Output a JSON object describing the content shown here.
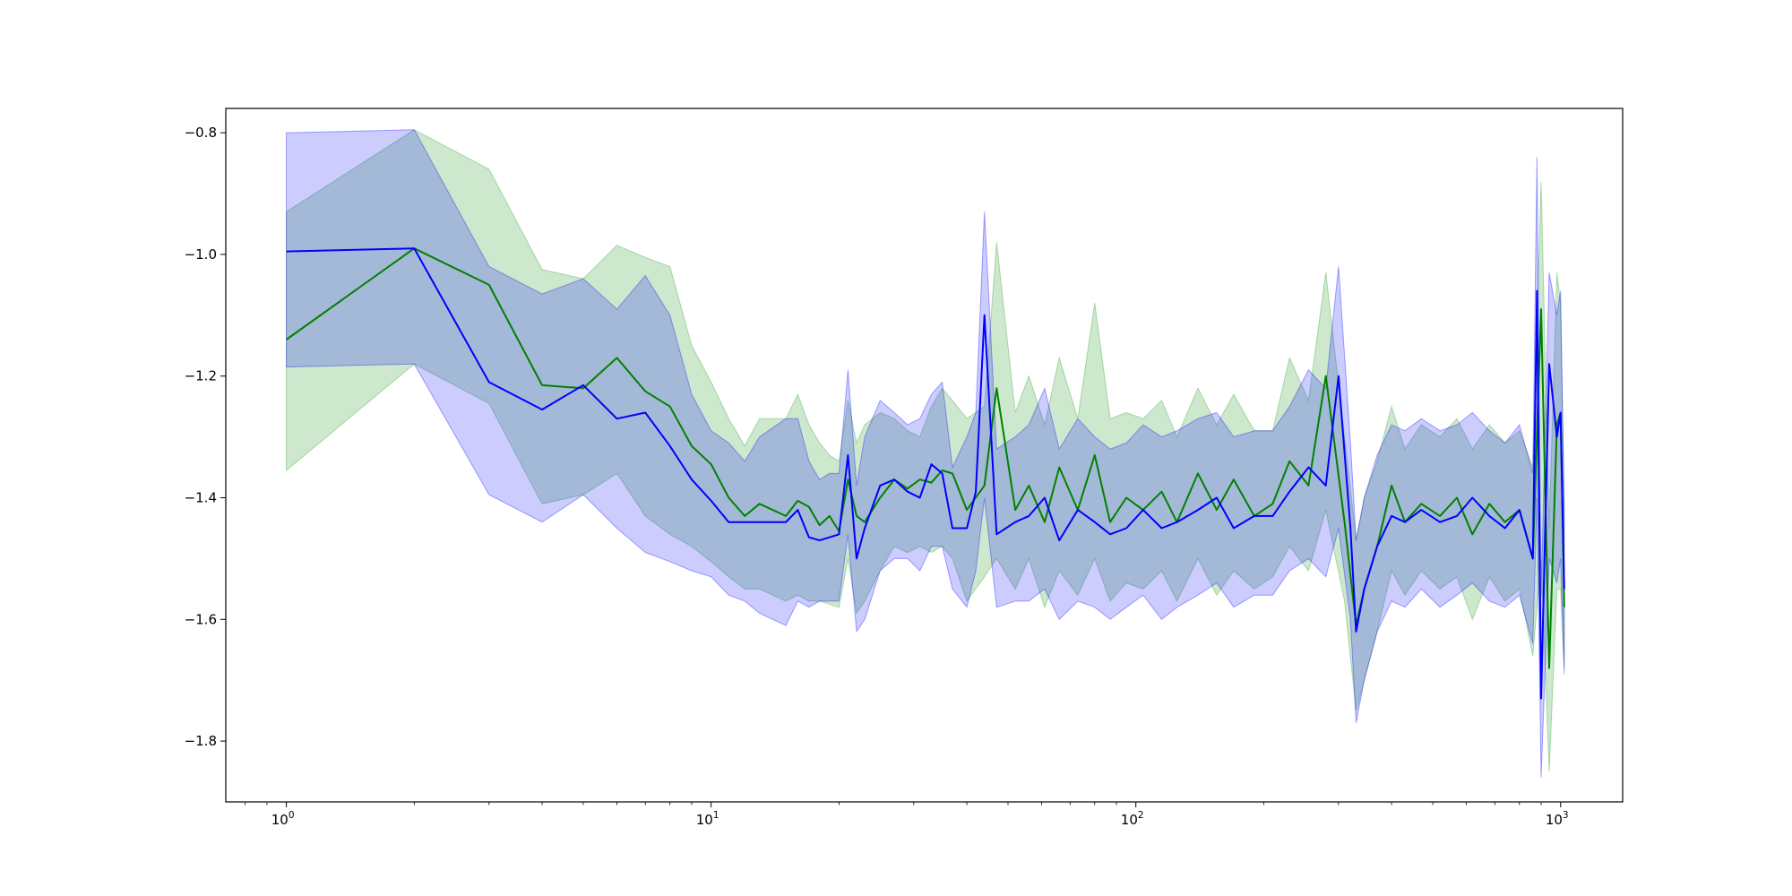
{
  "chart_data": {
    "type": "line",
    "title": "",
    "xlabel": "",
    "ylabel": "",
    "xscale": "log",
    "xlim": [
      0.72,
      1400
    ],
    "ylim": [
      -1.9,
      -0.76
    ],
    "grid": false,
    "legend": "none",
    "x_ticks": [
      {
        "base": "10",
        "exp": "0",
        "value": 1
      },
      {
        "base": "10",
        "exp": "1",
        "value": 10
      },
      {
        "base": "10",
        "exp": "2",
        "value": 100
      },
      {
        "base": "10",
        "exp": "3",
        "value": 1000
      }
    ],
    "y_ticks": [
      {
        "label": "−0.8",
        "value": -0.8
      },
      {
        "label": "−1.0",
        "value": -1.0
      },
      {
        "label": "−1.2",
        "value": -1.2
      },
      {
        "label": "−1.4",
        "value": -1.4
      },
      {
        "label": "−1.6",
        "value": -1.6
      },
      {
        "label": "−1.8",
        "value": -1.8
      }
    ],
    "series": [
      {
        "color": "#008000",
        "band_color": "#2ca02c",
        "band_opacity": 0.24,
        "x": [
          1,
          2,
          3,
          4,
          5,
          6,
          7,
          8,
          9,
          10,
          11,
          12,
          13,
          15,
          16,
          17,
          18,
          19,
          20,
          21,
          22,
          23,
          25,
          27,
          29,
          31,
          33,
          35,
          37,
          40,
          44,
          47,
          52,
          56,
          61,
          66,
          73,
          80,
          87,
          95,
          104,
          115,
          125,
          140,
          155,
          170,
          190,
          210,
          230,
          255,
          280,
          310,
          330,
          345,
          370,
          400,
          430,
          470,
          520,
          570,
          620,
          680,
          740,
          800,
          860,
          900,
          940,
          980,
          1000,
          1020
        ],
        "y": [
          -1.14,
          -0.99,
          -1.05,
          -1.215,
          -1.22,
          -1.17,
          -1.225,
          -1.25,
          -1.315,
          -1.345,
          -1.4,
          -1.43,
          -1.41,
          -1.43,
          -1.405,
          -1.415,
          -1.445,
          -1.43,
          -1.455,
          -1.37,
          -1.43,
          -1.44,
          -1.4,
          -1.37,
          -1.385,
          -1.37,
          -1.375,
          -1.355,
          -1.36,
          -1.42,
          -1.38,
          -1.22,
          -1.42,
          -1.38,
          -1.44,
          -1.35,
          -1.42,
          -1.33,
          -1.44,
          -1.4,
          -1.42,
          -1.39,
          -1.44,
          -1.36,
          -1.42,
          -1.37,
          -1.43,
          -1.41,
          -1.34,
          -1.38,
          -1.2,
          -1.44,
          -1.61,
          -1.55,
          -1.48,
          -1.38,
          -1.44,
          -1.41,
          -1.43,
          -1.4,
          -1.46,
          -1.41,
          -1.44,
          -1.42,
          -1.5,
          -1.09,
          -1.68,
          -1.28,
          -1.26,
          -1.58
        ],
        "lower": [
          -1.355,
          -1.18,
          -1.245,
          -1.41,
          -1.395,
          -1.36,
          -1.43,
          -1.46,
          -1.48,
          -1.505,
          -1.53,
          -1.55,
          -1.55,
          -1.57,
          -1.56,
          -1.57,
          -1.57,
          -1.575,
          -1.58,
          -1.5,
          -1.59,
          -1.57,
          -1.52,
          -1.48,
          -1.49,
          -1.48,
          -1.49,
          -1.48,
          -1.5,
          -1.57,
          -1.53,
          -1.5,
          -1.55,
          -1.5,
          -1.58,
          -1.52,
          -1.56,
          -1.5,
          -1.57,
          -1.54,
          -1.55,
          -1.52,
          -1.57,
          -1.5,
          -1.56,
          -1.52,
          -1.55,
          -1.53,
          -1.48,
          -1.52,
          -1.42,
          -1.57,
          -1.75,
          -1.7,
          -1.62,
          -1.52,
          -1.56,
          -1.52,
          -1.55,
          -1.53,
          -1.6,
          -1.53,
          -1.57,
          -1.55,
          -1.66,
          -1.5,
          -1.85,
          -1.55,
          -1.55,
          -1.68
        ],
        "upper": [
          -0.93,
          -0.795,
          -0.86,
          -1.025,
          -1.04,
          -0.985,
          -1.005,
          -1.02,
          -1.15,
          -1.21,
          -1.27,
          -1.315,
          -1.27,
          -1.27,
          -1.23,
          -1.28,
          -1.31,
          -1.33,
          -1.34,
          -1.24,
          -1.31,
          -1.28,
          -1.26,
          -1.27,
          -1.29,
          -1.3,
          -1.25,
          -1.22,
          -1.24,
          -1.27,
          -1.25,
          -0.98,
          -1.26,
          -1.2,
          -1.28,
          -1.17,
          -1.27,
          -1.08,
          -1.27,
          -1.26,
          -1.27,
          -1.24,
          -1.3,
          -1.22,
          -1.28,
          -1.23,
          -1.29,
          -1.29,
          -1.17,
          -1.24,
          -1.03,
          -1.3,
          -1.47,
          -1.4,
          -1.34,
          -1.25,
          -1.32,
          -1.28,
          -1.3,
          -1.27,
          -1.32,
          -1.28,
          -1.31,
          -1.29,
          -1.35,
          -0.88,
          -1.45,
          -1.03,
          -1.08,
          -1.42
        ]
      },
      {
        "color": "#0000ff",
        "band_color": "#0000ff",
        "band_opacity": 0.2,
        "x": [
          1,
          2,
          3,
          4,
          5,
          6,
          7,
          8,
          9,
          10,
          11,
          12,
          13,
          15,
          16,
          17,
          18,
          19,
          20,
          21,
          22,
          23,
          25,
          27,
          29,
          31,
          33,
          35,
          37,
          40,
          42,
          44,
          47,
          52,
          56,
          61,
          66,
          73,
          80,
          87,
          95,
          104,
          115,
          125,
          140,
          155,
          170,
          190,
          210,
          230,
          255,
          280,
          300,
          320,
          330,
          345,
          370,
          400,
          430,
          470,
          520,
          570,
          620,
          680,
          740,
          800,
          860,
          880,
          900,
          940,
          980,
          1000,
          1020
        ],
        "y": [
          -0.995,
          -0.99,
          -1.21,
          -1.255,
          -1.215,
          -1.27,
          -1.26,
          -1.315,
          -1.37,
          -1.405,
          -1.44,
          -1.44,
          -1.44,
          -1.44,
          -1.42,
          -1.465,
          -1.47,
          -1.465,
          -1.46,
          -1.33,
          -1.5,
          -1.45,
          -1.38,
          -1.37,
          -1.39,
          -1.4,
          -1.345,
          -1.36,
          -1.45,
          -1.45,
          -1.39,
          -1.1,
          -1.46,
          -1.44,
          -1.43,
          -1.4,
          -1.47,
          -1.42,
          -1.44,
          -1.46,
          -1.45,
          -1.42,
          -1.45,
          -1.44,
          -1.42,
          -1.4,
          -1.45,
          -1.43,
          -1.43,
          -1.39,
          -1.35,
          -1.38,
          -1.2,
          -1.45,
          -1.62,
          -1.55,
          -1.48,
          -1.43,
          -1.44,
          -1.42,
          -1.44,
          -1.43,
          -1.4,
          -1.43,
          -1.45,
          -1.42,
          -1.5,
          -1.06,
          -1.73,
          -1.18,
          -1.3,
          -1.26,
          -1.55
        ],
        "lower": [
          -1.185,
          -1.18,
          -1.395,
          -1.44,
          -1.395,
          -1.45,
          -1.49,
          -1.505,
          -1.52,
          -1.53,
          -1.56,
          -1.57,
          -1.59,
          -1.61,
          -1.57,
          -1.58,
          -1.57,
          -1.57,
          -1.57,
          -1.46,
          -1.62,
          -1.6,
          -1.52,
          -1.5,
          -1.5,
          -1.52,
          -1.48,
          -1.48,
          -1.55,
          -1.58,
          -1.52,
          -1.4,
          -1.58,
          -1.57,
          -1.57,
          -1.55,
          -1.6,
          -1.57,
          -1.58,
          -1.6,
          -1.58,
          -1.56,
          -1.6,
          -1.58,
          -1.56,
          -1.54,
          -1.58,
          -1.56,
          -1.56,
          -1.52,
          -1.5,
          -1.53,
          -1.45,
          -1.6,
          -1.77,
          -1.7,
          -1.62,
          -1.57,
          -1.58,
          -1.55,
          -1.58,
          -1.56,
          -1.54,
          -1.57,
          -1.58,
          -1.56,
          -1.64,
          -1.4,
          -1.86,
          -1.5,
          -1.54,
          -1.5,
          -1.69
        ],
        "upper": [
          -0.8,
          -0.795,
          -1.02,
          -1.065,
          -1.04,
          -1.09,
          -1.035,
          -1.1,
          -1.23,
          -1.29,
          -1.31,
          -1.34,
          -1.3,
          -1.27,
          -1.27,
          -1.34,
          -1.37,
          -1.36,
          -1.36,
          -1.19,
          -1.38,
          -1.3,
          -1.24,
          -1.26,
          -1.28,
          -1.27,
          -1.23,
          -1.21,
          -1.35,
          -1.3,
          -1.26,
          -0.93,
          -1.32,
          -1.3,
          -1.28,
          -1.22,
          -1.32,
          -1.27,
          -1.3,
          -1.32,
          -1.31,
          -1.28,
          -1.3,
          -1.29,
          -1.27,
          -1.26,
          -1.3,
          -1.29,
          -1.29,
          -1.25,
          -1.19,
          -1.22,
          -1.02,
          -1.31,
          -1.47,
          -1.4,
          -1.33,
          -1.28,
          -1.29,
          -1.27,
          -1.29,
          -1.28,
          -1.26,
          -1.29,
          -1.31,
          -1.28,
          -1.36,
          -0.84,
          -1.56,
          -1.03,
          -1.1,
          -1.06,
          -1.42
        ]
      }
    ]
  }
}
